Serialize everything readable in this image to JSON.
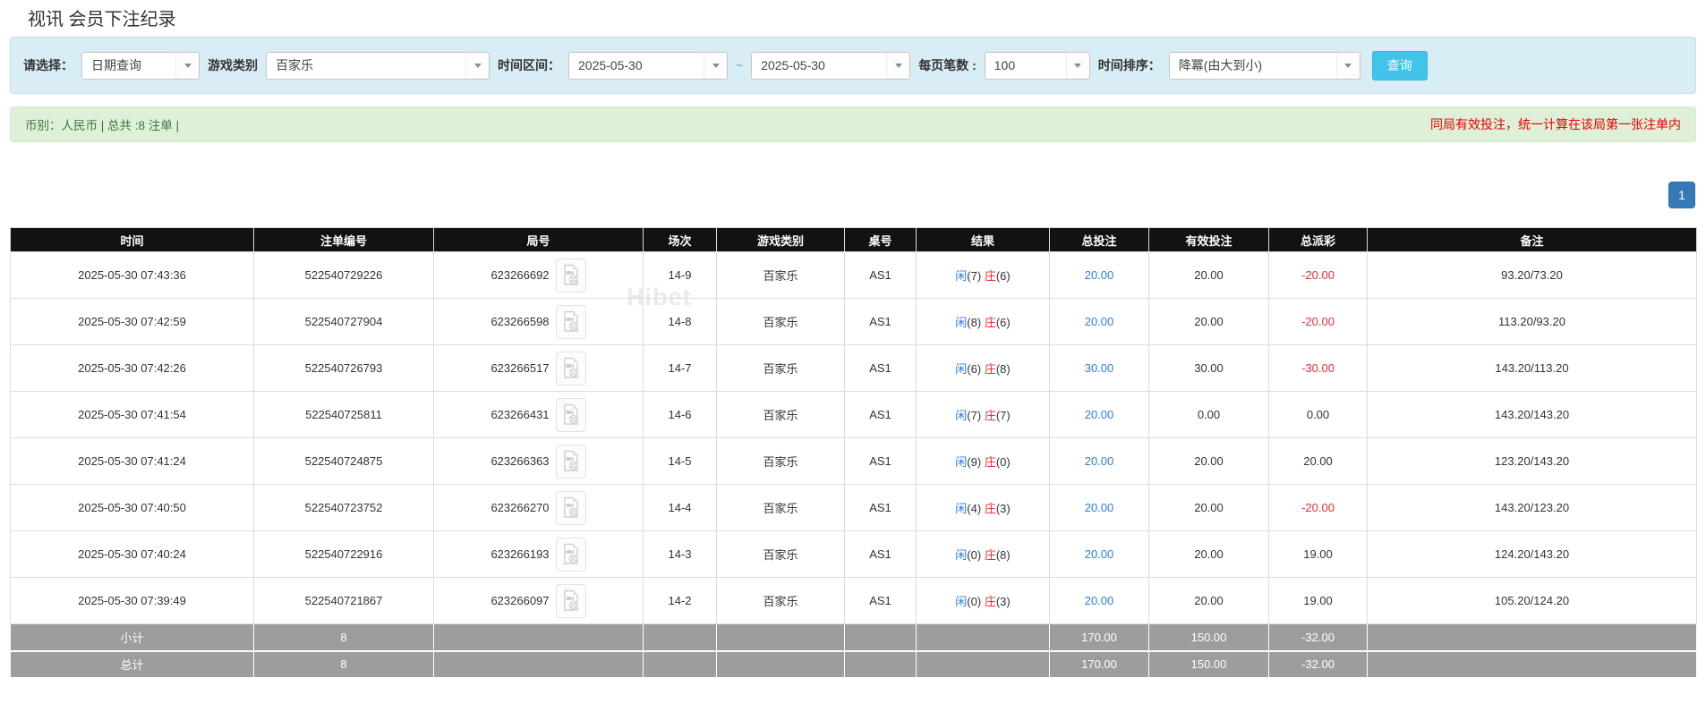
{
  "page": {
    "title": "视讯 会员下注纪录",
    "watermark": "Hibet"
  },
  "filter_bar": {
    "query_type": {
      "label": "请选择：",
      "value": "日期查询"
    },
    "game_category": {
      "label": "游戏类别",
      "value": "百家乐"
    },
    "time_range": {
      "label": "时间区间：",
      "from": "2025-05-30",
      "separator": "~",
      "to": "2025-05-30"
    },
    "page_size": {
      "label": "每页笔数 :",
      "value": "100"
    },
    "time_sort": {
      "label": "时间排序：",
      "value": "降冪(由大到小)"
    },
    "search_button": "查询"
  },
  "summary_bar": {
    "left": "币别：人民币 | 总共 :8 注单 |",
    "right": "同局有效投注，统一计算在该局第一张注单内"
  },
  "pagination": {
    "current_page": "1"
  },
  "table": {
    "headers": [
      "时间",
      "注单编号",
      "局号",
      "场次",
      "游戏类别",
      "桌号",
      "结果",
      "总投注",
      "有效投注",
      "总派彩",
      "备注"
    ],
    "rows": [
      {
        "time": "2025-05-30 07:43:36",
        "bet_id": "522540729226",
        "round_id": "623266692",
        "session": "14-9",
        "game": "百家乐",
        "table_no": "AS1",
        "result": {
          "player": "闲",
          "player_points": "(7)",
          "banker": "庄",
          "banker_points": "(6)"
        },
        "total_bet": "20.00",
        "valid_bet": "20.00",
        "payout": "-20.00",
        "note": "93.20/73.20"
      },
      {
        "time": "2025-05-30 07:42:59",
        "bet_id": "522540727904",
        "round_id": "623266598",
        "session": "14-8",
        "game": "百家乐",
        "table_no": "AS1",
        "result": {
          "player": "闲",
          "player_points": "(8)",
          "banker": "庄",
          "banker_points": "(6)"
        },
        "total_bet": "20.00",
        "valid_bet": "20.00",
        "payout": "-20.00",
        "note": "113.20/93.20"
      },
      {
        "time": "2025-05-30 07:42:26",
        "bet_id": "522540726793",
        "round_id": "623266517",
        "session": "14-7",
        "game": "百家乐",
        "table_no": "AS1",
        "result": {
          "player": "闲",
          "player_points": "(6)",
          "banker": "庄",
          "banker_points": "(8)"
        },
        "total_bet": "30.00",
        "valid_bet": "30.00",
        "payout": "-30.00",
        "note": "143.20/113.20"
      },
      {
        "time": "2025-05-30 07:41:54",
        "bet_id": "522540725811",
        "round_id": "623266431",
        "session": "14-6",
        "game": "百家乐",
        "table_no": "AS1",
        "result": {
          "player": "闲",
          "player_points": "(7)",
          "banker": "庄",
          "banker_points": "(7)"
        },
        "total_bet": "20.00",
        "valid_bet": "0.00",
        "payout": "0.00",
        "note": "143.20/143.20"
      },
      {
        "time": "2025-05-30 07:41:24",
        "bet_id": "522540724875",
        "round_id": "623266363",
        "session": "14-5",
        "game": "百家乐",
        "table_no": "AS1",
        "result": {
          "player": "闲",
          "player_points": "(9)",
          "banker": "庄",
          "banker_points": "(0)"
        },
        "total_bet": "20.00",
        "valid_bet": "20.00",
        "payout": "20.00",
        "note": "123.20/143.20"
      },
      {
        "time": "2025-05-30 07:40:50",
        "bet_id": "522540723752",
        "round_id": "623266270",
        "session": "14-4",
        "game": "百家乐",
        "table_no": "AS1",
        "result": {
          "player": "闲",
          "player_points": "(4)",
          "banker": "庄",
          "banker_points": "(3)"
        },
        "total_bet": "20.00",
        "valid_bet": "20.00",
        "payout": "-20.00",
        "note": "143.20/123.20"
      },
      {
        "time": "2025-05-30 07:40:24",
        "bet_id": "522540722916",
        "round_id": "623266193",
        "session": "14-3",
        "game": "百家乐",
        "table_no": "AS1",
        "result": {
          "player": "闲",
          "player_points": "(0)",
          "banker": "庄",
          "banker_points": "(8)"
        },
        "total_bet": "20.00",
        "valid_bet": "20.00",
        "payout": "19.00",
        "note": "124.20/143.20"
      },
      {
        "time": "2025-05-30 07:39:49",
        "bet_id": "522540721867",
        "round_id": "623266097",
        "session": "14-2",
        "game": "百家乐",
        "table_no": "AS1",
        "result": {
          "player": "闲",
          "player_points": "(0)",
          "banker": "庄",
          "banker_points": "(3)"
        },
        "total_bet": "20.00",
        "valid_bet": "20.00",
        "payout": "19.00",
        "note": "105.20/124.20"
      }
    ],
    "subtotal": {
      "label": "小计",
      "count": "8",
      "total_bet": "170.00",
      "valid_bet": "150.00",
      "total_payout": "-32.00"
    },
    "total": {
      "label": "总计",
      "count": "8",
      "total_bet": "170.00",
      "valid_bet": "150.00",
      "total_payout": "-32.00"
    }
  },
  "colors": {
    "accent_blue": "#2b7de9",
    "danger_red": "#ee2c2c",
    "success_green": "#3c763d",
    "filter_bar_blue": "#d9edf7",
    "summary_bar_green": "#dff0d8",
    "header_black": "#121212",
    "search_button_cyan": "#41c3ea",
    "pagination_blue": "#337ab7",
    "sum_row_grey": "#9d9d9d"
  }
}
